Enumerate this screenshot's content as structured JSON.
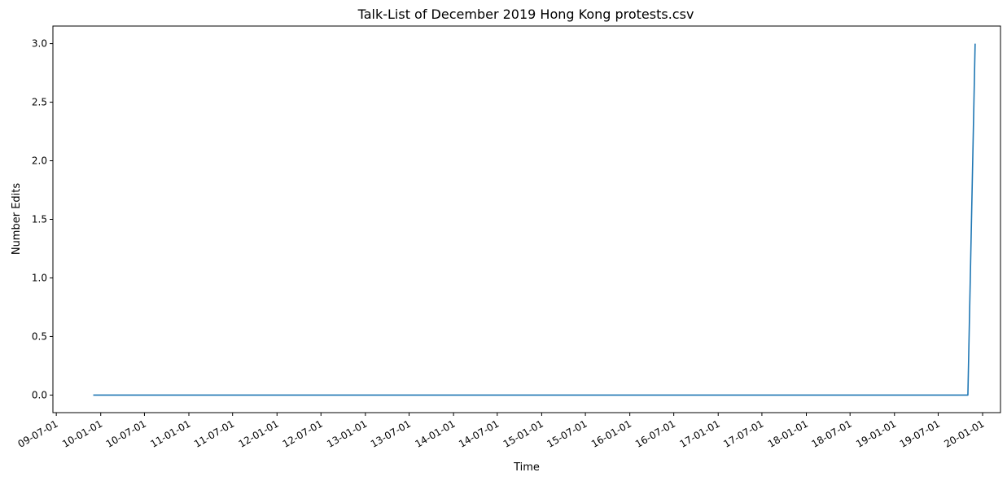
{
  "chart_data": {
    "type": "line",
    "title": "Talk-List of December 2019 Hong Kong protests.csv",
    "xlabel": "Time",
    "ylabel": "Number Edits",
    "x_axis_type": "date",
    "xlim": [
      "2009-06-17",
      "2020-03-15"
    ],
    "ylim": [
      -0.15,
      3.15
    ],
    "x_ticks": [
      "2009-07-01",
      "2010-01-01",
      "2010-07-01",
      "2011-01-01",
      "2011-07-01",
      "2012-01-01",
      "2012-07-01",
      "2013-01-01",
      "2013-07-01",
      "2014-01-01",
      "2014-07-01",
      "2015-01-01",
      "2015-07-01",
      "2016-01-01",
      "2016-07-01",
      "2017-01-01",
      "2017-07-01",
      "2018-01-01",
      "2018-07-01",
      "2019-01-01",
      "2019-07-01",
      "2020-01-01"
    ],
    "x_tick_labels": [
      "09-07-01",
      "10-01-01",
      "10-07-01",
      "11-01-01",
      "11-07-01",
      "12-01-01",
      "12-07-01",
      "13-01-01",
      "13-07-01",
      "14-01-01",
      "14-07-01",
      "15-01-01",
      "15-07-01",
      "16-01-01",
      "16-07-01",
      "17-01-01",
      "17-07-01",
      "18-01-01",
      "18-07-01",
      "19-01-01",
      "19-07-01",
      "20-01-01"
    ],
    "y_ticks": [
      0.0,
      0.5,
      1.0,
      1.5,
      2.0,
      2.5,
      3.0
    ],
    "y_tick_labels": [
      "0.0",
      "0.5",
      "1.0",
      "1.5",
      "2.0",
      "2.5",
      "3.0"
    ],
    "grid": false,
    "series": [
      {
        "color": "#1f77b4",
        "x": [
          "2009-12-01",
          "2019-11-01",
          "2019-12-01"
        ],
        "y": [
          0,
          0,
          3
        ]
      }
    ]
  }
}
